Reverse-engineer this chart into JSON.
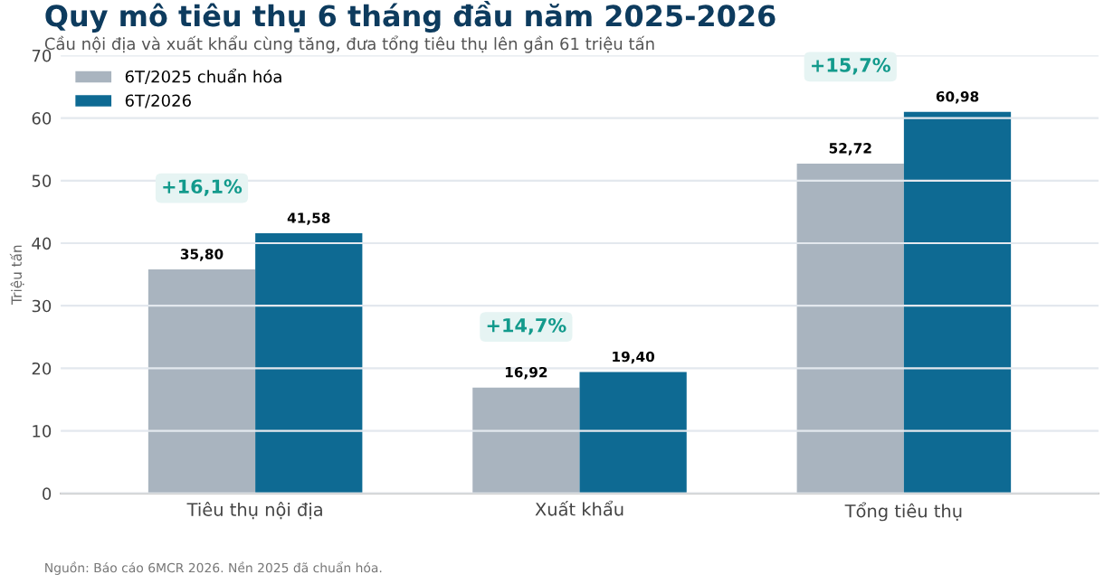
{
  "chart_data": {
    "type": "bar",
    "title": "Quy mô tiêu thụ 6 tháng đầu năm 2025-2026",
    "subtitle": "Cầu nội địa và xuất khẩu cùng tăng, đưa tổng tiêu thụ lên gần 61 triệu tấn",
    "ylabel": "Triệu tấn",
    "categories": [
      "Tiêu thụ nội địa",
      "Xuất khẩu",
      "Tổng tiêu thụ"
    ],
    "series": [
      {
        "name": "6T/2025 chuẩn hóa",
        "color": "#a9b4bf",
        "values": [
          35.8,
          16.92,
          52.72
        ],
        "value_labels": [
          "35,80",
          "16,92",
          "52,72"
        ]
      },
      {
        "name": "6T/2026",
        "color": "#0e6a93",
        "values": [
          41.58,
          19.4,
          60.98
        ],
        "value_labels": [
          "41,58",
          "19,40",
          "60,98"
        ]
      }
    ],
    "annotations": [
      "+16,1%",
      "+14,7%",
      "+15,7%",
      "Nguồn: Báo cáo 6MCR 2026. Nền 2025 đã chuẩn hóa."
    ],
    "ylim": [
      0,
      70
    ],
    "yticks": [
      0,
      10,
      20,
      30,
      40,
      50,
      60,
      70
    ],
    "grid": "y",
    "legend": "top left"
  }
}
